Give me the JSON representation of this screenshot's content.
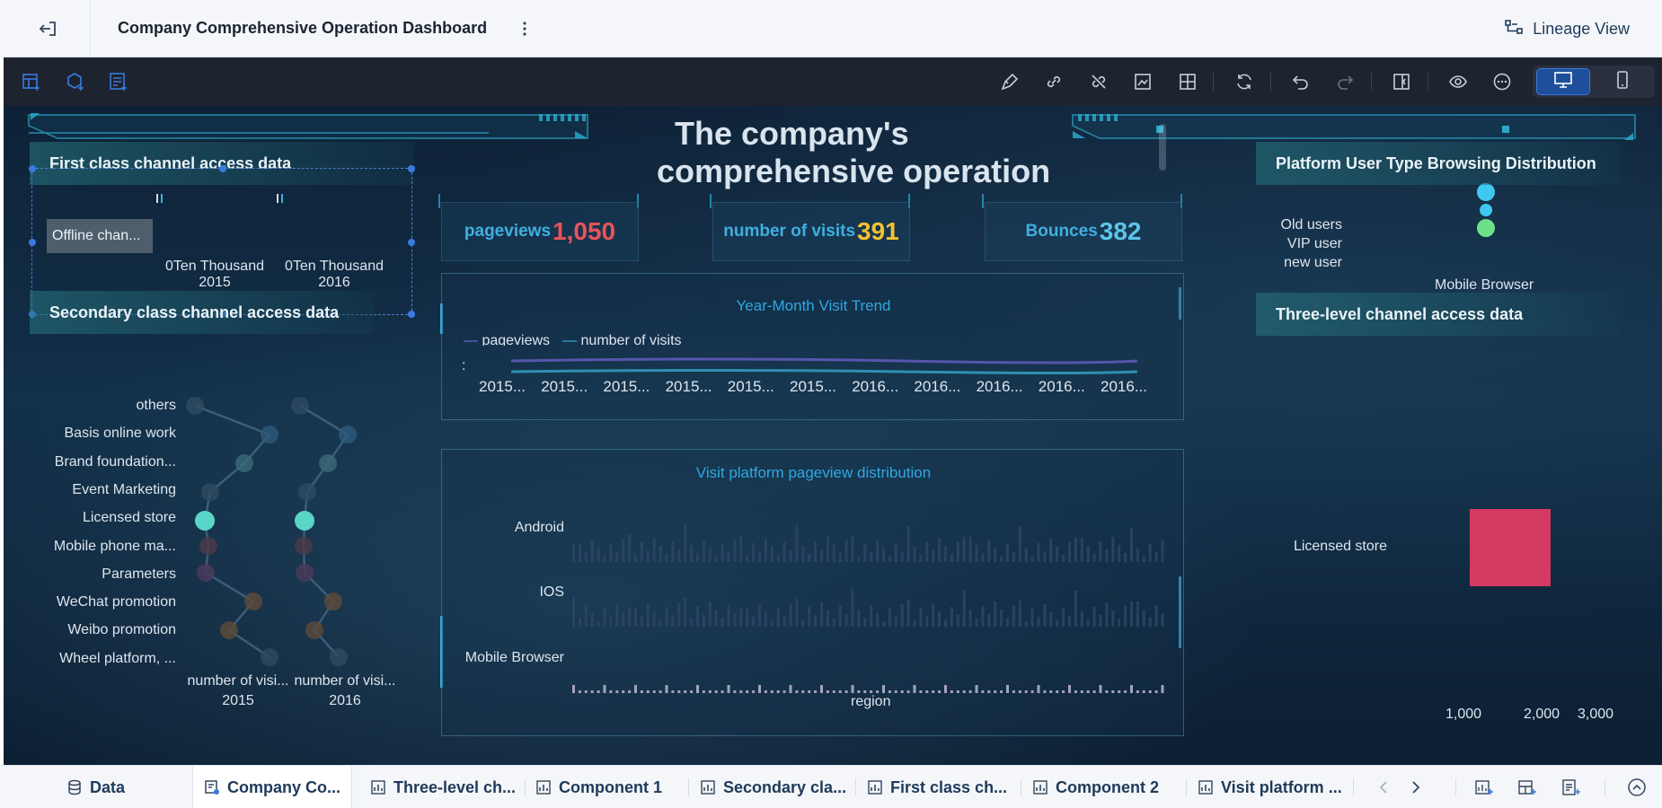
{
  "header": {
    "title": "Company Comprehensive Operation Dashboard",
    "lineage_label": "Lineage View"
  },
  "dashboard": {
    "title_line1": "The company's",
    "title_line2": "comprehensive     operation"
  },
  "kpis": [
    {
      "label": "pageviews",
      "value": "1,050",
      "color": "#e8535a"
    },
    {
      "label": "number of visits",
      "value": "391",
      "color": "#f2c230"
    },
    {
      "label": "Bounces",
      "value": "382",
      "color": "#5ec4e8"
    }
  ],
  "first_class": {
    "title": "First class channel access data",
    "tooltip": "Offline chan...",
    "x_labels": [
      {
        "line1": "0Ten Thousand",
        "line2": "2015"
      },
      {
        "line1": "0Ten Thousand",
        "line2": "2016"
      }
    ]
  },
  "secondary": {
    "title": "Secondary class channel access data",
    "categories": [
      "others",
      "Basis online work",
      "Brand foundation...",
      "Event Marketing",
      "Licensed store",
      "Mobile phone ma...",
      "Parameters",
      "WeChat promotion",
      "Weibo promotion",
      "Wheel platform, ..."
    ],
    "col_labels": [
      {
        "line1": "number of visi...",
        "line2": "2015"
      },
      {
        "line1": "number of visi...",
        "line2": "2016"
      }
    ]
  },
  "trend": {
    "title": "Year-Month Visit Trend",
    "legend": [
      "pageviews",
      "number of visits"
    ],
    "axis_fragment": ":",
    "x_labels": [
      "2015...",
      "2015...",
      "2015...",
      "2015...",
      "2015...",
      "2015...",
      "2016...",
      "2016...",
      "2016...",
      "2016...",
      "2016..."
    ]
  },
  "platform": {
    "title": "Visit platform pageview distribution",
    "rows": [
      "Android",
      "IOS",
      "Mobile Browser"
    ],
    "x_label": "region"
  },
  "user_type": {
    "title": "Platform User Type Browsing Distribution",
    "labels": [
      "Old users",
      "VIP user",
      "new user"
    ],
    "x_label": "Mobile Browser"
  },
  "three_level": {
    "title": "Three-level channel access data",
    "row_label": "Licensed store",
    "x_ticks": [
      "1,000",
      "2,000",
      "3,000"
    ]
  },
  "tabs": [
    {
      "label": "Data"
    },
    {
      "label": "Company Co..."
    },
    {
      "label": "Three-level ch..."
    },
    {
      "label": "Component 1"
    },
    {
      "label": "Secondary cla..."
    },
    {
      "label": "First class ch..."
    },
    {
      "label": "Component 2"
    },
    {
      "label": "Visit platform ..."
    }
  ]
}
